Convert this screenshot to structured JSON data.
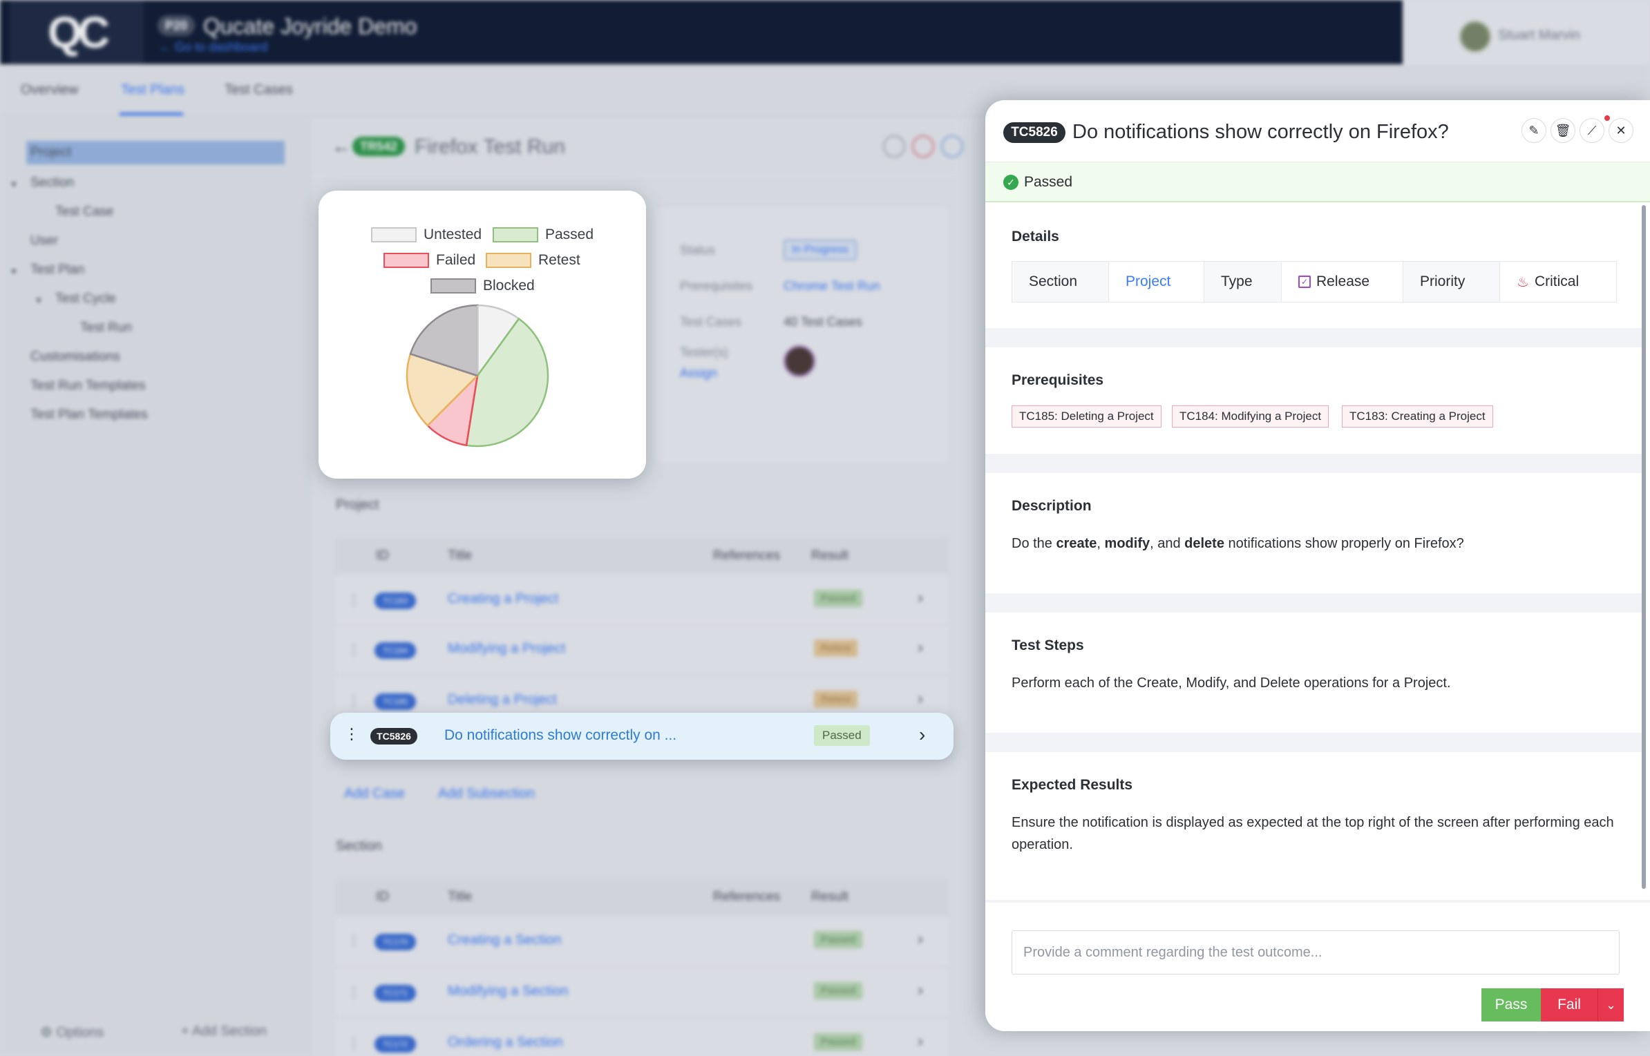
{
  "app": {
    "logo": "QC",
    "project_badge": "P20",
    "project_name": "Qucate Joyride Demo",
    "go_dashboard": "← Go to dashboard",
    "user_name": "Stuart Marvin"
  },
  "tabs": [
    {
      "label": "Overview"
    },
    {
      "label": "Test Plans"
    },
    {
      "label": "Test Cases"
    }
  ],
  "sidebar": {
    "items": [
      {
        "label": "Project"
      },
      {
        "label": "Section"
      },
      {
        "label": "Test Case"
      },
      {
        "label": "User"
      },
      {
        "label": "Test Plan"
      },
      {
        "label": "Test Cycle"
      },
      {
        "label": "Test Run"
      },
      {
        "label": "Customisations"
      },
      {
        "label": "Test Run Templates"
      },
      {
        "label": "Test Plan Templates"
      }
    ],
    "options_label": "Options",
    "add_section_label": "Add Section"
  },
  "run": {
    "badge": "TR542",
    "title": "Firefox Test Run",
    "info": {
      "status_label": "Status",
      "status_value": "In Progress",
      "prereq_label": "Prerequisites",
      "prereq_value": "Chrome Test Run",
      "cases_label": "Test Cases",
      "cases_value": "40 Test Cases",
      "testers_label": "Tester(s)",
      "assign_label": "Assign"
    }
  },
  "table": {
    "headers": {
      "id": "ID",
      "title": "Title",
      "refs": "References",
      "result": "Result"
    },
    "project_section": "Project",
    "project_rows": [
      {
        "id": "TC183",
        "title": "Creating a Project",
        "result": "Passed"
      },
      {
        "id": "TC184",
        "title": "Modifying a Project",
        "result": "Retest"
      },
      {
        "id": "TC185",
        "title": "Deleting a Project",
        "result": "Retest"
      }
    ],
    "add_case": "Add Case",
    "add_subsection": "Add Subsection",
    "section_section": "Section",
    "section_rows": [
      {
        "id": "TC170",
        "title": "Creating a Section",
        "result": "Passed"
      },
      {
        "id": "TC171",
        "title": "Modifying a Section",
        "result": "Passed"
      },
      {
        "id": "TC172",
        "title": "Ordering a Section",
        "result": "Passed"
      }
    ]
  },
  "highlight_row": {
    "id": "TC5826",
    "title": "Do notifications show correctly on ...",
    "result": "Passed"
  },
  "chart_data": {
    "type": "pie",
    "title": "",
    "legend": [
      "Untested",
      "Passed",
      "Failed",
      "Retest",
      "Blocked"
    ],
    "series": [
      {
        "name": "Untested",
        "value": 4,
        "color": "#f2f2f2",
        "border": "#c8c8c8"
      },
      {
        "name": "Passed",
        "value": 17,
        "color": "#d9ebd1",
        "border": "#8fc07c"
      },
      {
        "name": "Failed",
        "value": 4,
        "color": "#f8c6cc",
        "border": "#e8505e"
      },
      {
        "name": "Retest",
        "value": 7,
        "color": "#f6e2bd",
        "border": "#e8b15d"
      },
      {
        "name": "Blocked",
        "value": 8,
        "color": "#c6c3c6",
        "border": "#8f8a8f"
      }
    ]
  },
  "panel": {
    "tc_badge": "TC5826",
    "title": "Do notifications show correctly on Firefox?",
    "status": "Passed",
    "details_heading": "Details",
    "details": {
      "section_label": "Section",
      "section_value": "Project",
      "type_label": "Type",
      "type_value": "Release",
      "priority_label": "Priority",
      "priority_value": "Critical"
    },
    "prereq_heading": "Prerequisites",
    "prerequisites": [
      "TC185: Deleting a Project",
      "TC184: Modifying a Project",
      "TC183: Creating a Project"
    ],
    "description_heading": "Description",
    "description": {
      "p1": "Do the ",
      "b1": "create",
      "p2": ", ",
      "b2": "modify",
      "p3": ", and ",
      "b3": "delete",
      "p4": " notifications show properly on Firefox?"
    },
    "steps_heading": "Test Steps",
    "steps": "Perform each of the Create, Modify, and Delete operations for a Project.",
    "expected_heading": "Expected Results",
    "expected": "Ensure the notification is displayed as expected at the top right of the screen after performing each operation.",
    "comment_placeholder": "Provide a comment regarding the test outcome...",
    "pass_label": "Pass",
    "fail_label": "Fail"
  }
}
